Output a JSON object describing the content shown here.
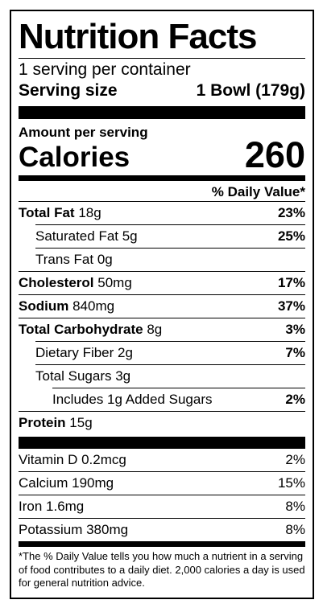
{
  "header": {
    "title": "Nutrition Facts"
  },
  "serving": {
    "servings_per_container": "1 serving per container",
    "serving_size_label": "Serving size",
    "serving_size_value": "1 Bowl (179g)"
  },
  "calories": {
    "heading": "Amount per serving",
    "label": "Calories",
    "value": "260"
  },
  "daily_value_heading": "% Daily Value*",
  "nutrients": [
    {
      "name": "Total Fat",
      "amount": "18g",
      "dv": "23%",
      "subs": [
        {
          "name": "Saturated Fat 5g",
          "dv": "25%"
        },
        {
          "name": "Trans Fat 0g"
        }
      ]
    },
    {
      "name": "Cholesterol",
      "amount": "50mg",
      "dv": "17%"
    },
    {
      "name": "Sodium",
      "amount": "840mg",
      "dv": "37%"
    },
    {
      "name": "Total Carbohydrate",
      "amount": "8g",
      "dv": "3%",
      "subs": [
        {
          "name": "Dietary Fiber 2g",
          "dv": "7%"
        },
        {
          "name": "Total Sugars 3g",
          "subs": [
            {
              "name": "Includes 1g Added Sugars",
              "dv": "2%"
            }
          ]
        }
      ]
    },
    {
      "name": "Protein",
      "amount": "15g"
    }
  ],
  "vitamins": [
    {
      "name": "Vitamin D 0.2mcg",
      "dv": "2%"
    },
    {
      "name": "Calcium 190mg",
      "dv": "15%"
    },
    {
      "name": "Iron 1.6mg",
      "dv": "8%"
    },
    {
      "name": "Potassium 380mg",
      "dv": "8%"
    }
  ],
  "footnote": "*The % Daily Value tells you how much a nutrient in a serving of food contributes to a daily diet. 2,000 calories a day is used for general nutrition advice."
}
